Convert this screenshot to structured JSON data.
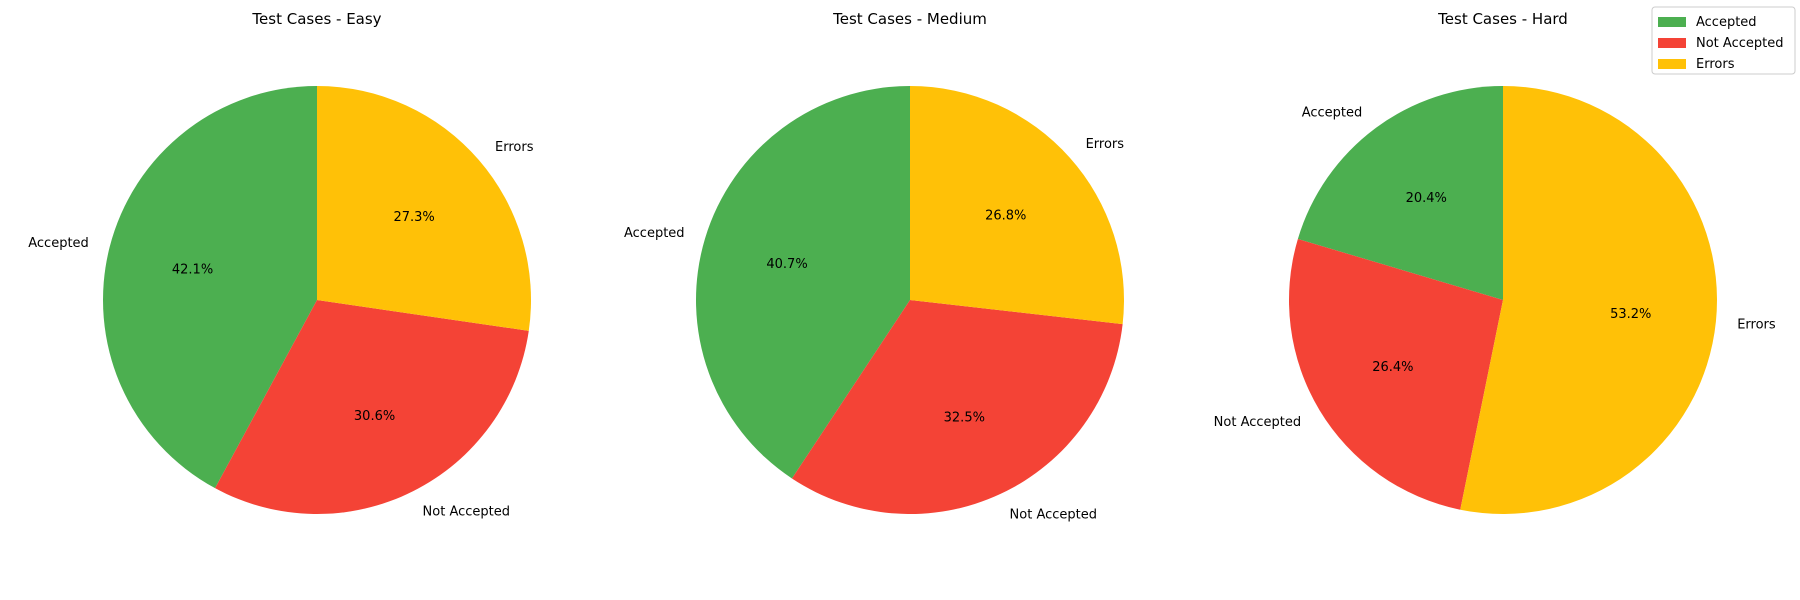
{
  "colors": {
    "Accepted": "#4caf50",
    "Not Accepted": "#f44336",
    "Errors": "#ffc107"
  },
  "legend": [
    "Accepted",
    "Not Accepted",
    "Errors"
  ],
  "chart_data": [
    {
      "type": "pie",
      "title": "Test Cases - Easy",
      "labels": [
        "Accepted",
        "Not Accepted",
        "Errors"
      ],
      "values": [
        42.1,
        30.6,
        27.3
      ],
      "start_angle_deg": 90,
      "direction": "counterclockwise"
    },
    {
      "type": "pie",
      "title": "Test Cases - Medium",
      "labels": [
        "Accepted",
        "Not Accepted",
        "Errors"
      ],
      "values": [
        40.7,
        32.5,
        26.8
      ],
      "start_angle_deg": 90,
      "direction": "counterclockwise"
    },
    {
      "type": "pie",
      "title": "Test Cases - Hard",
      "labels": [
        "Accepted",
        "Not Accepted",
        "Errors"
      ],
      "values": [
        20.4,
        26.4,
        53.2
      ],
      "start_angle_deg": 90,
      "direction": "counterclockwise"
    }
  ]
}
